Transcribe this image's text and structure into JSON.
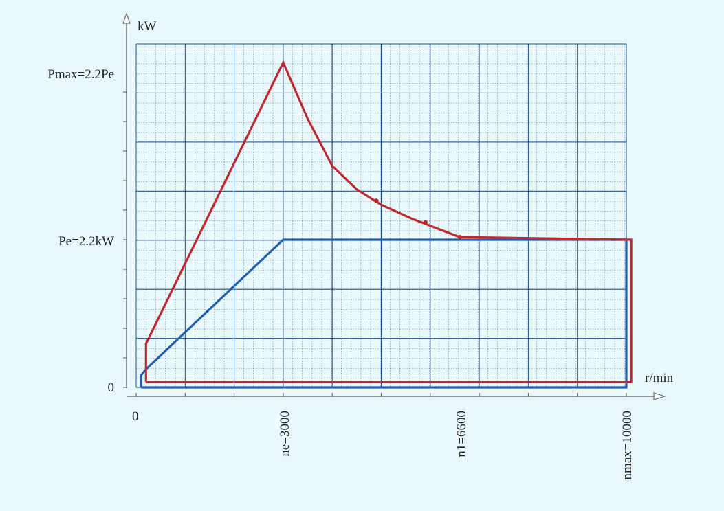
{
  "chart_data": {
    "type": "line",
    "xlabel": "r/min",
    "ylabel": "kW",
    "x_origin_label": "0",
    "y_tick_labels": [
      {
        "text": "Pmax=2.2Pe",
        "value": 4.84
      },
      {
        "text": "Pe=2.2kW",
        "value": 2.2
      },
      {
        "text": "0",
        "value": 0
      }
    ],
    "x_tick_labels": [
      {
        "text": "ne=3000",
        "value": 3000
      },
      {
        "text": "n1=6600",
        "value": 6600
      },
      {
        "text": "nmax=10000",
        "value": 10000
      }
    ],
    "xlim": [
      0,
      10000
    ],
    "ylim": [
      0,
      5.3
    ],
    "grid": true,
    "series": [
      {
        "color": "#c0282d",
        "points": [
          [
            200,
            0.08
          ],
          [
            200,
            0.65
          ],
          [
            3000,
            4.84
          ],
          [
            3500,
            4.0
          ],
          [
            4000,
            3.3
          ],
          [
            4500,
            2.95
          ],
          [
            5000,
            2.72
          ],
          [
            5600,
            2.52
          ],
          [
            6200,
            2.35
          ],
          [
            6600,
            2.24
          ],
          [
            10100,
            2.2
          ],
          [
            10100,
            0.08
          ],
          [
            200,
            0.08
          ]
        ],
        "markers": [
          [
            4900,
            2.78
          ],
          [
            5900,
            2.46
          ],
          [
            6600,
            2.24
          ]
        ]
      },
      {
        "color": "#1f5fb3",
        "points": [
          [
            100,
            0.0
          ],
          [
            100,
            0.18
          ],
          [
            200,
            0.27
          ],
          [
            3000,
            2.2
          ],
          [
            10000,
            2.2
          ],
          [
            10000,
            0.0
          ],
          [
            100,
            0.0
          ]
        ]
      }
    ]
  }
}
